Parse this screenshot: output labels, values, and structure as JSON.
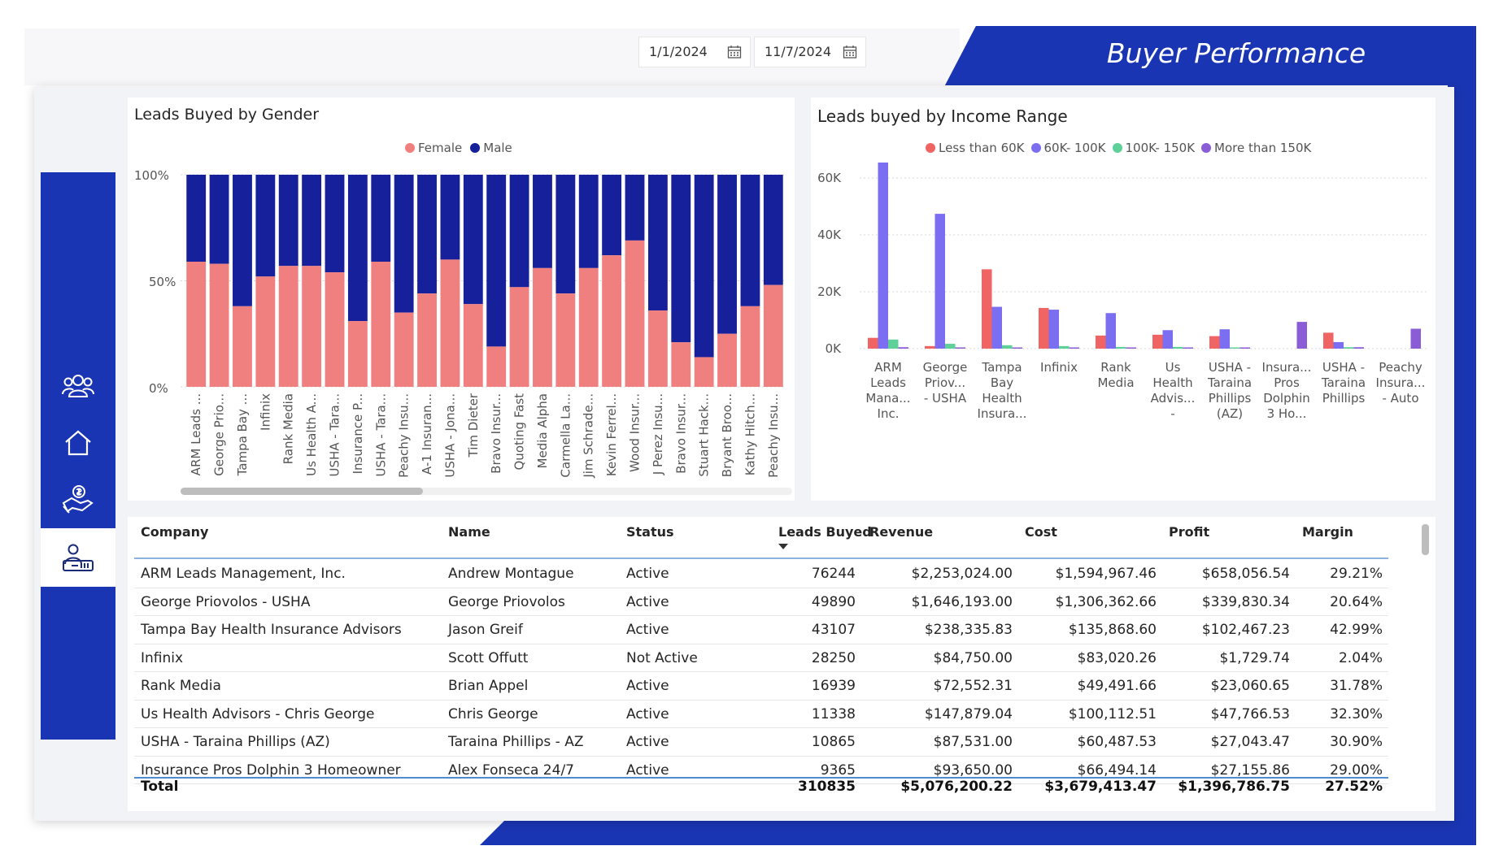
{
  "header": {
    "title": "Buyer Performance",
    "date_start": "1/1/2024",
    "date_end": "11/7/2024"
  },
  "colors": {
    "brand": "#1a35b3",
    "female": "#f07f7f",
    "male": "#16209a",
    "lt60": "#f06464",
    "r60_100": "#7b6ef0",
    "r100_150": "#5ed19a",
    "gt150": "#8a5cd6"
  },
  "nav": {
    "items": [
      {
        "name": "people-icon"
      },
      {
        "name": "home-icon"
      },
      {
        "name": "money-hand-icon"
      },
      {
        "name": "buyer-icon"
      }
    ]
  },
  "gender_chart": {
    "title": "Leads Buyed by Gender",
    "legend": [
      "Female",
      "Male"
    ],
    "y_ticks": [
      "100%",
      "50%",
      "0%"
    ]
  },
  "income_chart": {
    "title": "Leads buyed by Income Range",
    "legend": [
      "Less than 60K",
      "60K- 100K",
      "100K- 150K",
      "More than 150K"
    ],
    "y_ticks": [
      "60K",
      "40K",
      "20K",
      "0K"
    ]
  },
  "chart_data": [
    {
      "type": "bar",
      "stacked": "100%",
      "title": "Leads Buyed by Gender",
      "ylim": [
        0,
        100
      ],
      "categories": [
        "ARM Leads ...",
        "George Prio...",
        "Tampa Bay ...",
        "Infinix",
        "Rank Media",
        "Us Health A...",
        "USHA - Tara...",
        "Insurance P...",
        "USHA - Tara...",
        "Peachy Insu...",
        "A-1 Insuran...",
        "USHA - Jona...",
        "Tim Dieter",
        "Bravo Insur...",
        "Quoting Fast",
        "Media Alpha",
        "Carmella La...",
        "Jim Schrade...",
        "Kevin Ferrel...",
        "Wood Insur...",
        "J Perez Insu...",
        "Bravo Insur...",
        "Stuart Hack...",
        "Bryant Broo...",
        "Kathy Hitch...",
        "Peachy Insu..."
      ],
      "series": [
        {
          "name": "Female",
          "values": [
            59,
            58,
            38,
            52,
            57,
            57,
            54,
            31,
            59,
            35,
            44,
            60,
            39,
            19,
            47,
            56,
            44,
            56,
            62,
            69,
            36,
            21,
            14,
            25,
            38,
            48
          ]
        },
        {
          "name": "Male",
          "values": [
            41,
            42,
            62,
            48,
            43,
            43,
            46,
            69,
            41,
            65,
            56,
            40,
            61,
            81,
            53,
            44,
            56,
            44,
            38,
            31,
            64,
            79,
            86,
            75,
            62,
            52
          ]
        }
      ],
      "legend_position": "top-center"
    },
    {
      "type": "bar",
      "title": "Leads buyed by Income Range",
      "ylim": [
        0,
        70000
      ],
      "categories": [
        "ARM Leads Mana... Inc.",
        "George Priov... - USHA",
        "Tampa Bay Health Insura...",
        "Infinix",
        "Rank Media",
        "Us Health Advis... - Chri...",
        "USHA - Taraina Phillips (AZ)",
        "Insura... Pros Dolphin 3 Ho...",
        "USHA - Taraina Phillips",
        "Peachy Insura... - Auto"
      ],
      "series": [
        {
          "name": "Less than 60K",
          "values": [
            3800,
            900,
            27900,
            14300,
            4600,
            4900,
            4400,
            0,
            5600,
            0
          ]
        },
        {
          "name": "60K- 100K",
          "values": [
            69800,
            47400,
            14700,
            13700,
            12500,
            6500,
            6800,
            0,
            2300,
            0
          ]
        },
        {
          "name": "100K- 150K",
          "values": [
            3200,
            1700,
            1200,
            900,
            600,
            600,
            400,
            0,
            500,
            0
          ]
        },
        {
          "name": "More than 150K",
          "values": [
            500,
            300,
            300,
            200,
            200,
            200,
            400,
            9400,
            500,
            7000
          ]
        }
      ],
      "legend_position": "top-center"
    }
  ],
  "table": {
    "columns": [
      "Company",
      "Name",
      "Status",
      "Leads Buyed",
      "Revenue",
      "Cost",
      "Profit",
      "Margin"
    ],
    "rows": [
      [
        "ARM Leads Management, Inc.",
        "Andrew Montague",
        "Active",
        "76244",
        "$2,253,024.00",
        "$1,594,967.46",
        "$658,056.54",
        "29.21%"
      ],
      [
        "George Priovolos - USHA",
        "George Priovolos",
        "Active",
        "49890",
        "$1,646,193.00",
        "$1,306,362.66",
        "$339,830.34",
        "20.64%"
      ],
      [
        "Tampa Bay Health Insurance Advisors",
        "Jason Greif",
        "Active",
        "43107",
        "$238,335.83",
        "$135,868.60",
        "$102,467.23",
        "42.99%"
      ],
      [
        "Infinix",
        "Scott Offutt",
        "Not Active",
        "28250",
        "$84,750.00",
        "$83,020.26",
        "$1,729.74",
        "2.04%"
      ],
      [
        "Rank Media",
        "Brian Appel",
        "Active",
        "16939",
        "$72,552.31",
        "$49,491.66",
        "$23,060.65",
        "31.78%"
      ],
      [
        "Us Health Advisors - Chris George",
        "Chris George",
        "Active",
        "11338",
        "$147,879.04",
        "$100,112.51",
        "$47,766.53",
        "32.30%"
      ],
      [
        "USHA - Taraina Phillips (AZ)",
        "Taraina Phillips - AZ",
        "Active",
        "10865",
        "$87,531.00",
        "$60,487.53",
        "$27,043.47",
        "30.90%"
      ],
      [
        "Insurance Pros Dolphin 3 Homeowner",
        "Alex Fonseca 24/7",
        "Active",
        "9365",
        "$93,650.00",
        "$66,494.14",
        "$27,155.86",
        "29.00%"
      ]
    ],
    "total": {
      "label": "Total",
      "leads": "310835",
      "revenue": "$5,076,200.22",
      "cost": "$3,679,413.47",
      "profit": "$1,396,786.75",
      "margin": "27.52%"
    }
  }
}
